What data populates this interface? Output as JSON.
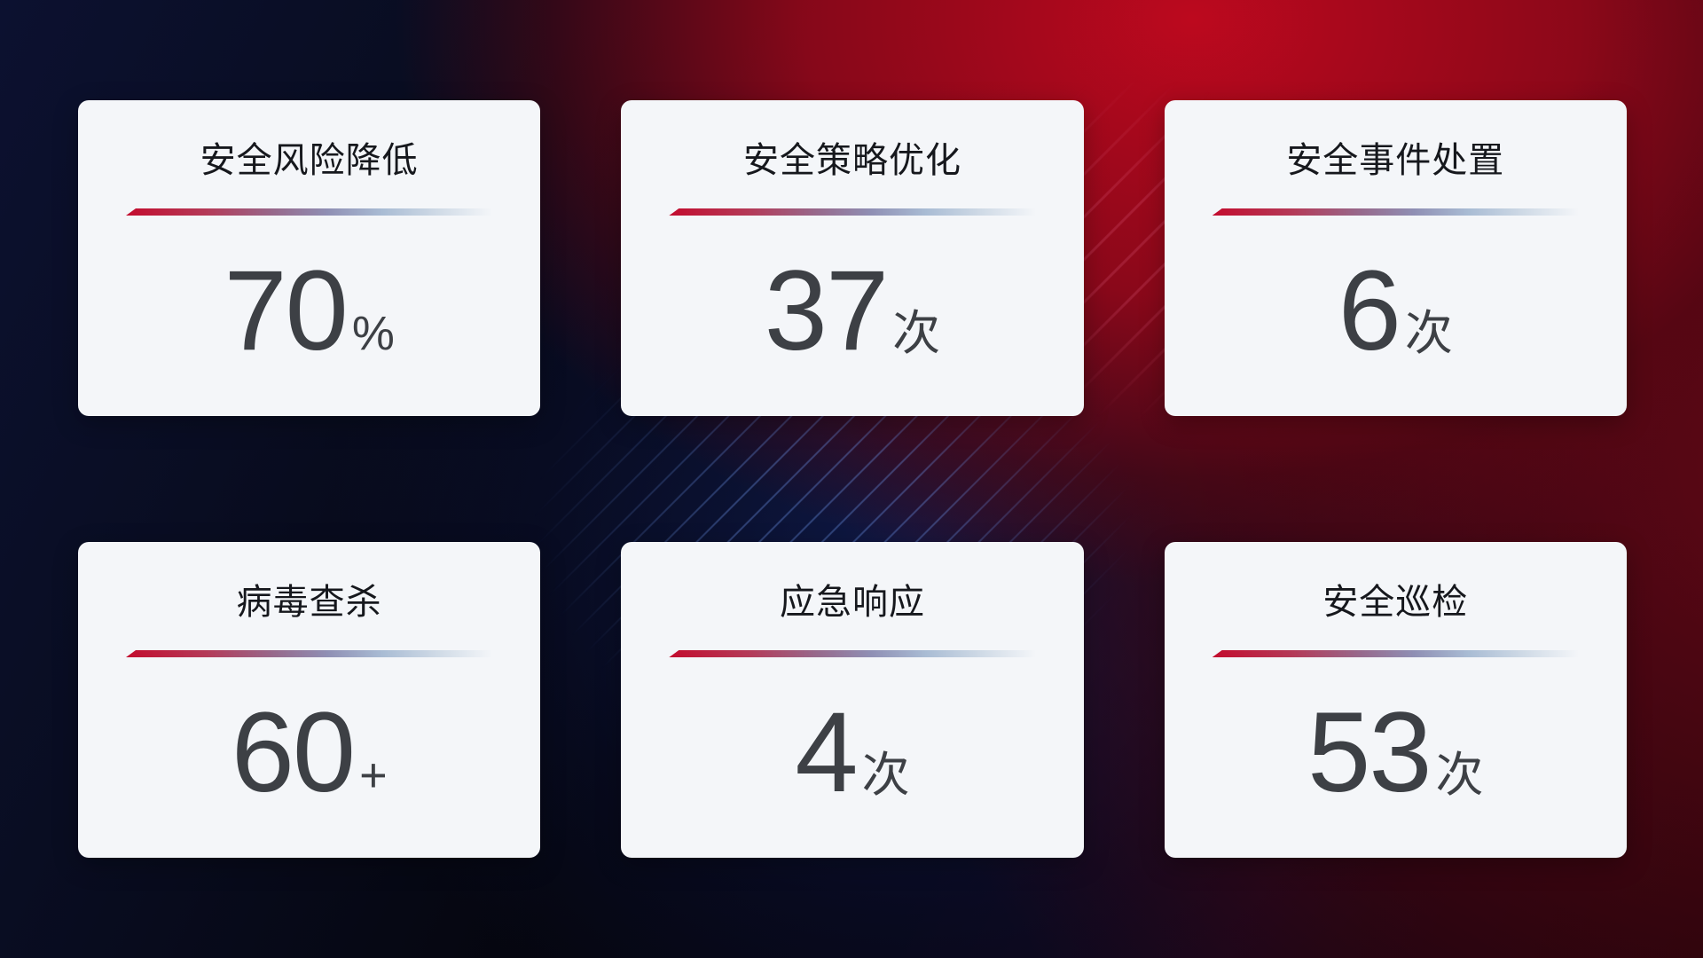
{
  "colors": {
    "accent_red": "#c30c2e",
    "divider_fade_blue": "#cfdae6",
    "card_bg": "#f4f6f9",
    "title_text": "#16181d",
    "value_text": "#3d4045",
    "bg_navy": "#0c1130",
    "bg_red": "#c5091f"
  },
  "cards": [
    {
      "title": "安全风险降低",
      "value": "70",
      "unit": "%"
    },
    {
      "title": "安全策略优化",
      "value": "37",
      "unit": "次"
    },
    {
      "title": "安全事件处置",
      "value": "6",
      "unit": "次"
    },
    {
      "title": "病毒查杀",
      "value": "60",
      "unit": "+"
    },
    {
      "title": "应急响应",
      "value": "4",
      "unit": "次"
    },
    {
      "title": "安全巡检",
      "value": "53",
      "unit": "次"
    }
  ]
}
